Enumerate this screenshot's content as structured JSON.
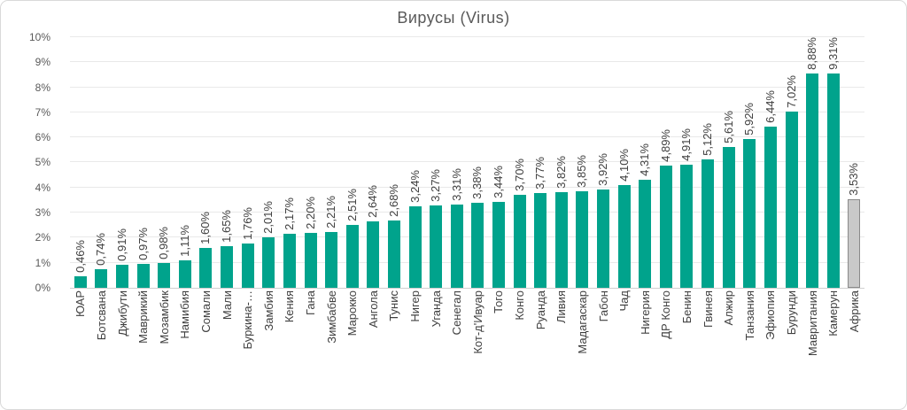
{
  "chart_data": {
    "type": "bar",
    "title": "Вирусы (Virus)",
    "categories": [
      "ЮАР",
      "Ботсвана",
      "Джибути",
      "Маврикий",
      "Мозамбик",
      "Намибия",
      "Сомали",
      "Мали",
      "Буркина-…",
      "Замбия",
      "Кения",
      "Гана",
      "Зимбабве",
      "Марокко",
      "Ангола",
      "Тунис",
      "Нигер",
      "Уганда",
      "Сенегал",
      "Кот-д'Ивуар",
      "Того",
      "Конго",
      "Руанда",
      "Ливия",
      "Мадагаскар",
      "Габон",
      "Чад",
      "Нигерия",
      "ДР Конго",
      "Бенин",
      "Гвинея",
      "Алжир",
      "Танзания",
      "Эфиопия",
      "Бурунди",
      "Мавритания",
      "Камерун",
      "Африка"
    ],
    "values": [
      0.46,
      0.74,
      0.91,
      0.97,
      0.98,
      1.11,
      1.6,
      1.65,
      1.76,
      2.01,
      2.17,
      2.2,
      2.21,
      2.51,
      2.64,
      2.68,
      3.24,
      3.27,
      3.31,
      3.38,
      3.44,
      3.7,
      3.77,
      3.82,
      3.85,
      3.92,
      4.1,
      4.31,
      4.89,
      4.91,
      5.12,
      5.61,
      5.92,
      6.44,
      7.02,
      8.88,
      9.31,
      3.53
    ],
    "value_labels": [
      "0,46%",
      "0,74%",
      "0,91%",
      "0,97%",
      "0,98%",
      "1,11%",
      "1,60%",
      "1,65%",
      "1,76%",
      "2,01%",
      "2,17%",
      "2,20%",
      "2,21%",
      "2,51%",
      "2,64%",
      "2,68%",
      "3,24%",
      "3,27%",
      "3,31%",
      "3,38%",
      "3,44%",
      "3,70%",
      "3,77%",
      "3,82%",
      "3,85%",
      "3,92%",
      "4,10%",
      "4,31%",
      "4,89%",
      "4,91%",
      "5,12%",
      "5,61%",
      "5,92%",
      "6,44%",
      "7,02%",
      "8,88%",
      "9,31%",
      "3,53%"
    ],
    "ylim": [
      0,
      10
    ],
    "yticks": [
      "0%",
      "1%",
      "2%",
      "3%",
      "4%",
      "5%",
      "6%",
      "7%",
      "8%",
      "9%",
      "10%"
    ],
    "grid": true,
    "legend": "none",
    "xlabel": "",
    "ylabel": "",
    "highlight_category": "Африка",
    "colors": {
      "bar": "#00a38c",
      "highlight_bar": "#c9c9c9",
      "highlight_border": "#8a8a8a",
      "title_text": "#595959",
      "tick_text": "#595959",
      "label_text": "#3f3f3f",
      "gridline": "#e9e9e9",
      "axis_line": "#cfcfcf",
      "canvas_border": "#d9d9d9",
      "background": "#ffffff"
    }
  }
}
